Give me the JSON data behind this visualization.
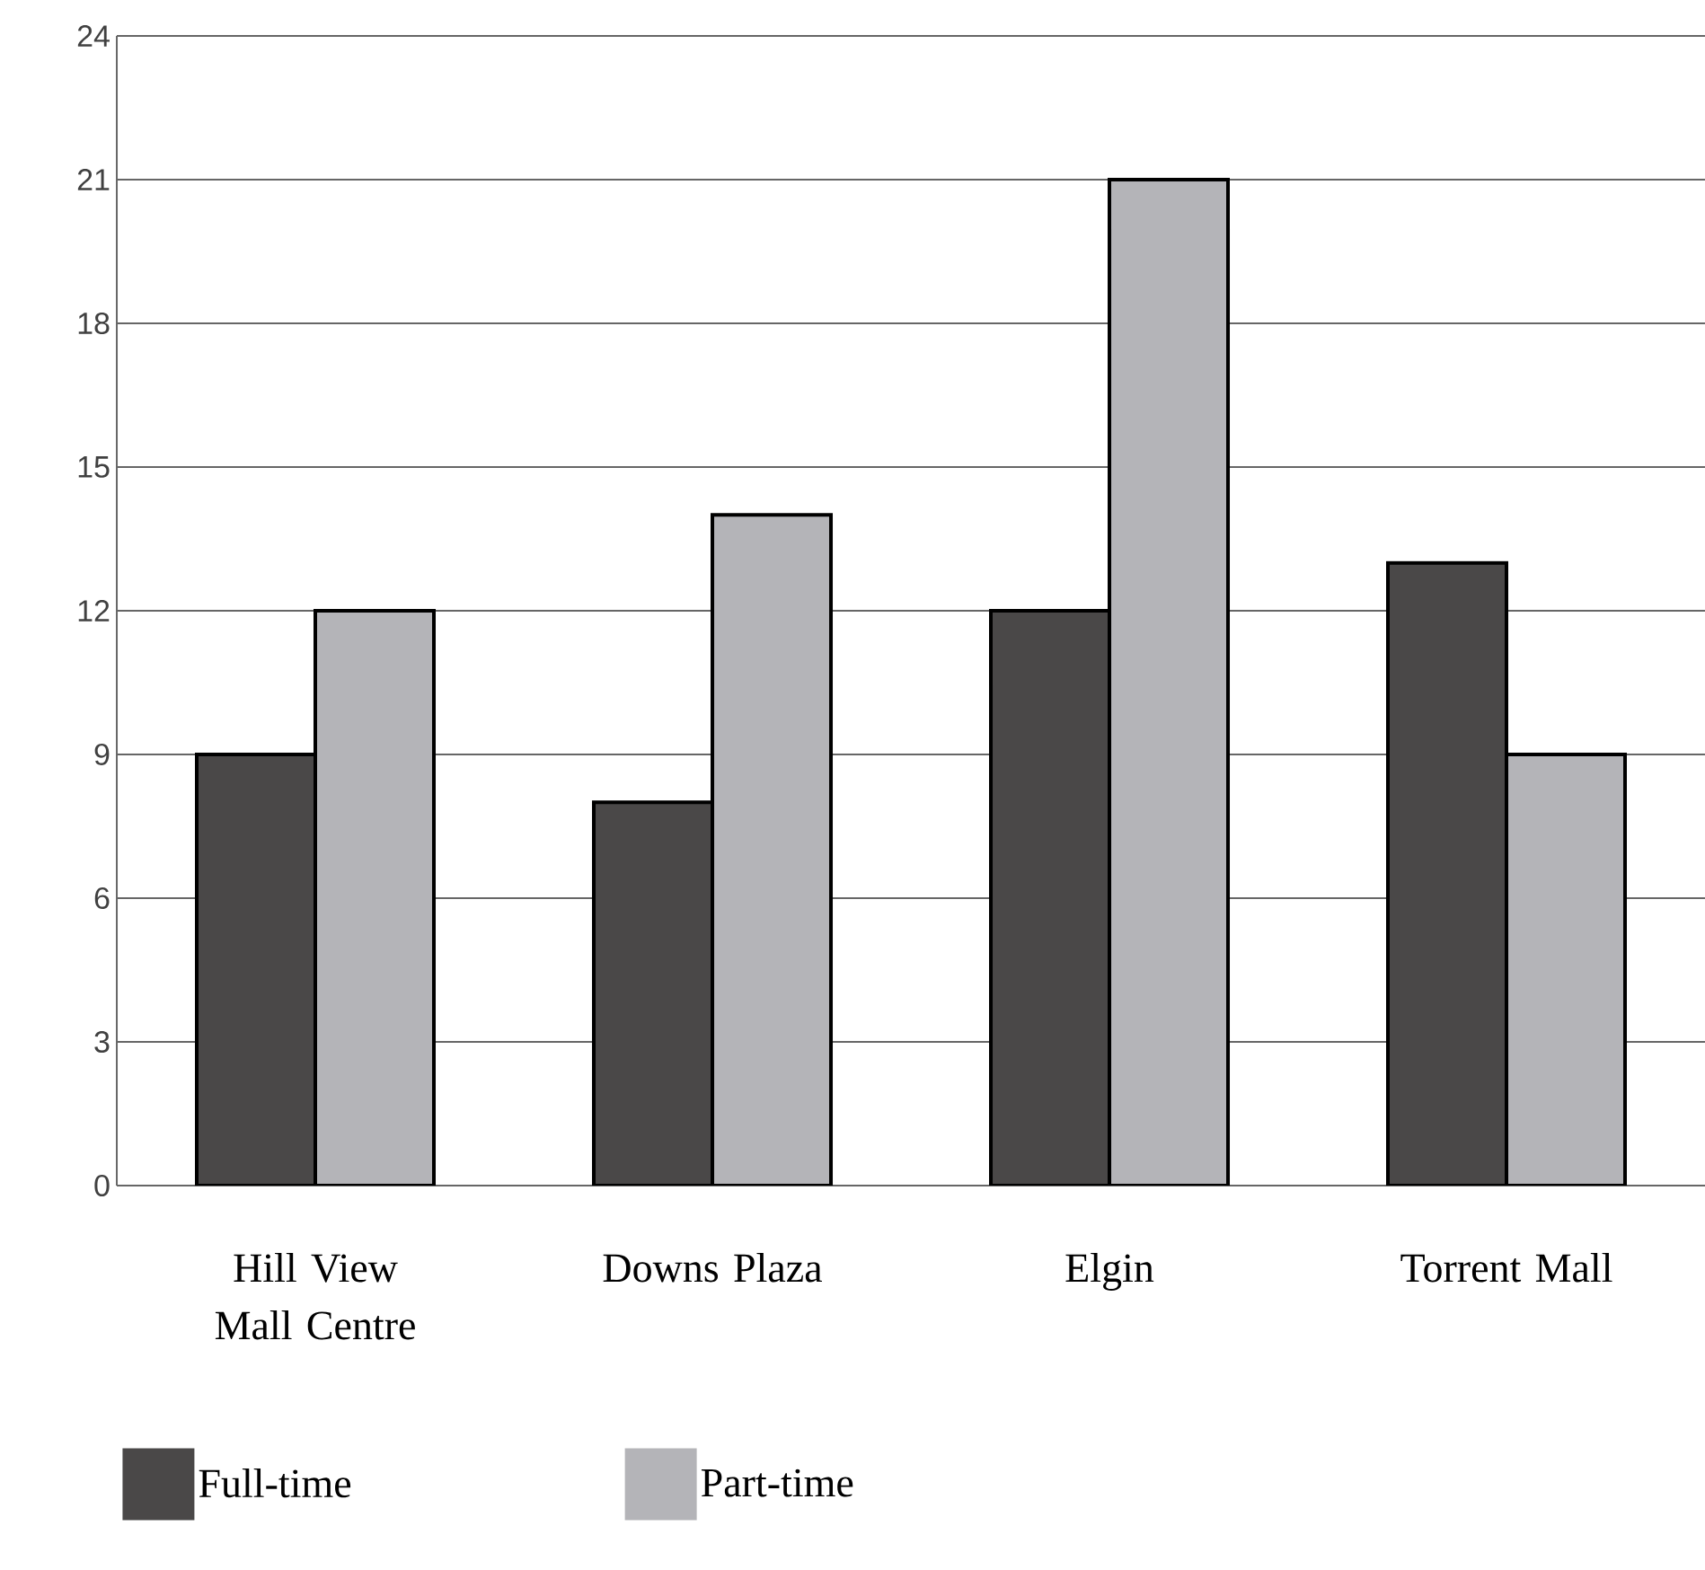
{
  "chart_data": {
    "type": "bar",
    "categories": [
      "Hill View Mall Centre",
      "Downs Plaza",
      "Elgin",
      "Torrent Mall"
    ],
    "series": [
      {
        "name": "Full-time",
        "color": "#4a4848",
        "values": [
          9,
          8,
          12,
          13
        ]
      },
      {
        "name": "Part-time",
        "color": "#b4b4b8",
        "values": [
          12,
          14,
          21,
          9
        ]
      }
    ],
    "ylim": [
      0,
      24
    ],
    "yticks": [
      0,
      3,
      6,
      9,
      12,
      15,
      18,
      21,
      24
    ],
    "grid": "y",
    "legend": "bottom"
  }
}
